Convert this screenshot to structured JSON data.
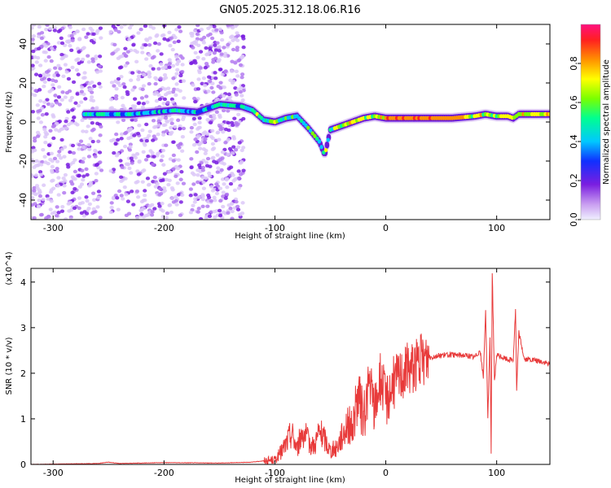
{
  "title": "GN05.2025.312.18.06.R16",
  "chart_data": [
    {
      "type": "heatmap",
      "name": "spectrogram",
      "xlabel": "Height of straight line (km)",
      "ylabel": "Frequency (Hz)",
      "xlim": [
        -320,
        148
      ],
      "ylim": [
        -50,
        50
      ],
      "xticks": [
        -300,
        -200,
        -100,
        0,
        100
      ],
      "yticks": [
        -40,
        -20,
        0,
        20,
        40
      ],
      "colorbar": {
        "label": "Normalized spectral amplitude",
        "range": [
          0,
          1
        ],
        "ticks": [
          0.0,
          0.2,
          0.4,
          0.6,
          0.8
        ]
      },
      "ridge": {
        "x": [
          -270,
          -250,
          -230,
          -210,
          -190,
          -170,
          -150,
          -130,
          -120,
          -110,
          -100,
          -90,
          -80,
          -70,
          -60,
          -55,
          -50,
          -40,
          -30,
          -20,
          -10,
          0,
          20,
          40,
          60,
          80,
          90,
          100,
          110,
          115,
          120,
          148
        ],
        "y": [
          4,
          4,
          4,
          5,
          6,
          5,
          9,
          8,
          6,
          1,
          0,
          2,
          3,
          -3,
          -10,
          -17,
          -4,
          -2,
          0,
          2,
          3,
          2,
          2,
          2,
          2,
          3,
          4,
          3,
          3,
          2,
          4,
          4
        ]
      }
    },
    {
      "type": "line",
      "name": "snr",
      "xlabel": "Height of straight line (km)",
      "ylabel": "SNR (10 * v/v)",
      "y_multiplier": "(x10^4)",
      "xlim": [
        -320,
        148
      ],
      "ylim": [
        0,
        4.3
      ],
      "xticks": [
        -300,
        -200,
        -100,
        0,
        100
      ],
      "yticks": [
        0,
        1,
        2,
        3,
        4
      ],
      "color": "#e83a3a",
      "x": [
        -320,
        -260,
        -250,
        -240,
        -200,
        -150,
        -120,
        -110,
        -100,
        -95,
        -90,
        -85,
        -80,
        -75,
        -70,
        -65,
        -60,
        -55,
        -50,
        -45,
        -40,
        -35,
        -30,
        -25,
        -20,
        -15,
        -10,
        -5,
        0,
        5,
        10,
        15,
        20,
        30,
        40,
        50,
        60,
        70,
        80,
        85,
        88,
        90,
        92,
        94,
        95,
        96,
        98,
        100,
        105,
        110,
        115,
        117,
        118,
        120,
        125,
        130,
        140,
        148
      ],
      "y": [
        0.0,
        0.02,
        0.05,
        0.02,
        0.04,
        0.03,
        0.05,
        0.08,
        0.1,
        0.25,
        0.45,
        0.7,
        0.35,
        0.75,
        0.5,
        0.4,
        0.7,
        0.55,
        0.3,
        0.35,
        0.6,
        0.9,
        0.8,
        1.5,
        1.0,
        1.8,
        1.2,
        1.9,
        1.4,
        1.7,
        1.9,
        2.0,
        2.1,
        2.25,
        2.35,
        2.4,
        2.4,
        2.4,
        2.35,
        2.5,
        1.9,
        3.4,
        1.0,
        2.8,
        0.25,
        4.25,
        1.8,
        2.4,
        2.35,
        2.3,
        2.3,
        3.4,
        1.6,
        2.9,
        2.3,
        2.3,
        2.25,
        2.2
      ]
    }
  ]
}
